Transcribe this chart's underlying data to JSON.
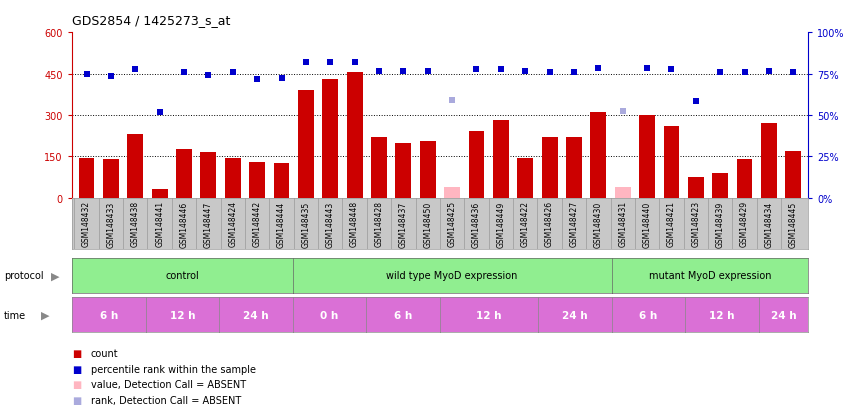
{
  "title": "GDS2854 / 1425273_s_at",
  "samples": [
    "GSM148432",
    "GSM148433",
    "GSM148438",
    "GSM148441",
    "GSM148446",
    "GSM148447",
    "GSM148424",
    "GSM148442",
    "GSM148444",
    "GSM148435",
    "GSM148443",
    "GSM148448",
    "GSM148428",
    "GSM148437",
    "GSM148450",
    "GSM148425",
    "GSM148436",
    "GSM148449",
    "GSM148422",
    "GSM148426",
    "GSM148427",
    "GSM148430",
    "GSM148431",
    "GSM148440",
    "GSM148421",
    "GSM148423",
    "GSM148439",
    "GSM148429",
    "GSM148434",
    "GSM148445"
  ],
  "count_values": [
    145,
    142,
    230,
    30,
    175,
    165,
    145,
    128,
    125,
    390,
    430,
    455,
    220,
    200,
    205,
    40,
    240,
    280,
    145,
    220,
    220,
    310,
    40,
    300,
    260,
    75,
    90,
    140,
    270,
    170
  ],
  "count_absent": [
    false,
    false,
    false,
    false,
    false,
    false,
    false,
    false,
    false,
    false,
    false,
    false,
    false,
    false,
    false,
    true,
    false,
    false,
    false,
    false,
    false,
    false,
    true,
    false,
    false,
    false,
    false,
    false,
    false,
    false
  ],
  "rank_values": [
    450,
    440,
    465,
    310,
    455,
    445,
    455,
    430,
    435,
    490,
    490,
    490,
    460,
    460,
    460,
    355,
    465,
    465,
    460,
    455,
    455,
    470,
    315,
    470,
    465,
    350,
    455,
    455,
    460,
    455
  ],
  "rank_absent": [
    false,
    false,
    false,
    false,
    false,
    false,
    false,
    false,
    false,
    false,
    false,
    false,
    false,
    false,
    false,
    true,
    false,
    false,
    false,
    false,
    false,
    false,
    true,
    false,
    false,
    false,
    false,
    false,
    false,
    false
  ],
  "ylim_left": [
    0,
    600
  ],
  "yticks_left": [
    0,
    150,
    300,
    450,
    600
  ],
  "ytick_labels_left": [
    "0",
    "150",
    "300",
    "450",
    "600"
  ],
  "ytick_labels_right": [
    "0%",
    "25%",
    "50%",
    "75%",
    "100%"
  ],
  "bar_color": "#CC0000",
  "bar_absent_color": "#FFB6C1",
  "rank_color": "#0000CC",
  "rank_absent_color": "#AAAADD",
  "left_axis_color": "#CC0000",
  "right_axis_color": "#0000CC",
  "title_fontsize": 9,
  "tick_fontsize": 7,
  "sample_fontsize": 5.5,
  "legend_fontsize": 7,
  "protocol_groups": [
    {
      "label": "control",
      "start": 0,
      "end": 8
    },
    {
      "label": "wild type MyoD expression",
      "start": 9,
      "end": 21
    },
    {
      "label": "mutant MyoD expression",
      "start": 22,
      "end": 29
    }
  ],
  "time_groups": [
    {
      "label": "6 h",
      "start": 0,
      "end": 2
    },
    {
      "label": "12 h",
      "start": 3,
      "end": 5
    },
    {
      "label": "24 h",
      "start": 6,
      "end": 8
    },
    {
      "label": "0 h",
      "start": 9,
      "end": 11
    },
    {
      "label": "6 h",
      "start": 12,
      "end": 14
    },
    {
      "label": "12 h",
      "start": 15,
      "end": 18
    },
    {
      "label": "24 h",
      "start": 19,
      "end": 21
    },
    {
      "label": "6 h",
      "start": 22,
      "end": 24
    },
    {
      "label": "12 h",
      "start": 25,
      "end": 27
    },
    {
      "label": "24 h",
      "start": 28,
      "end": 29
    }
  ],
  "protocol_color": "#90EE90",
  "time_color": "#DA70D6",
  "xticklabel_bg": "#C8C8C8"
}
